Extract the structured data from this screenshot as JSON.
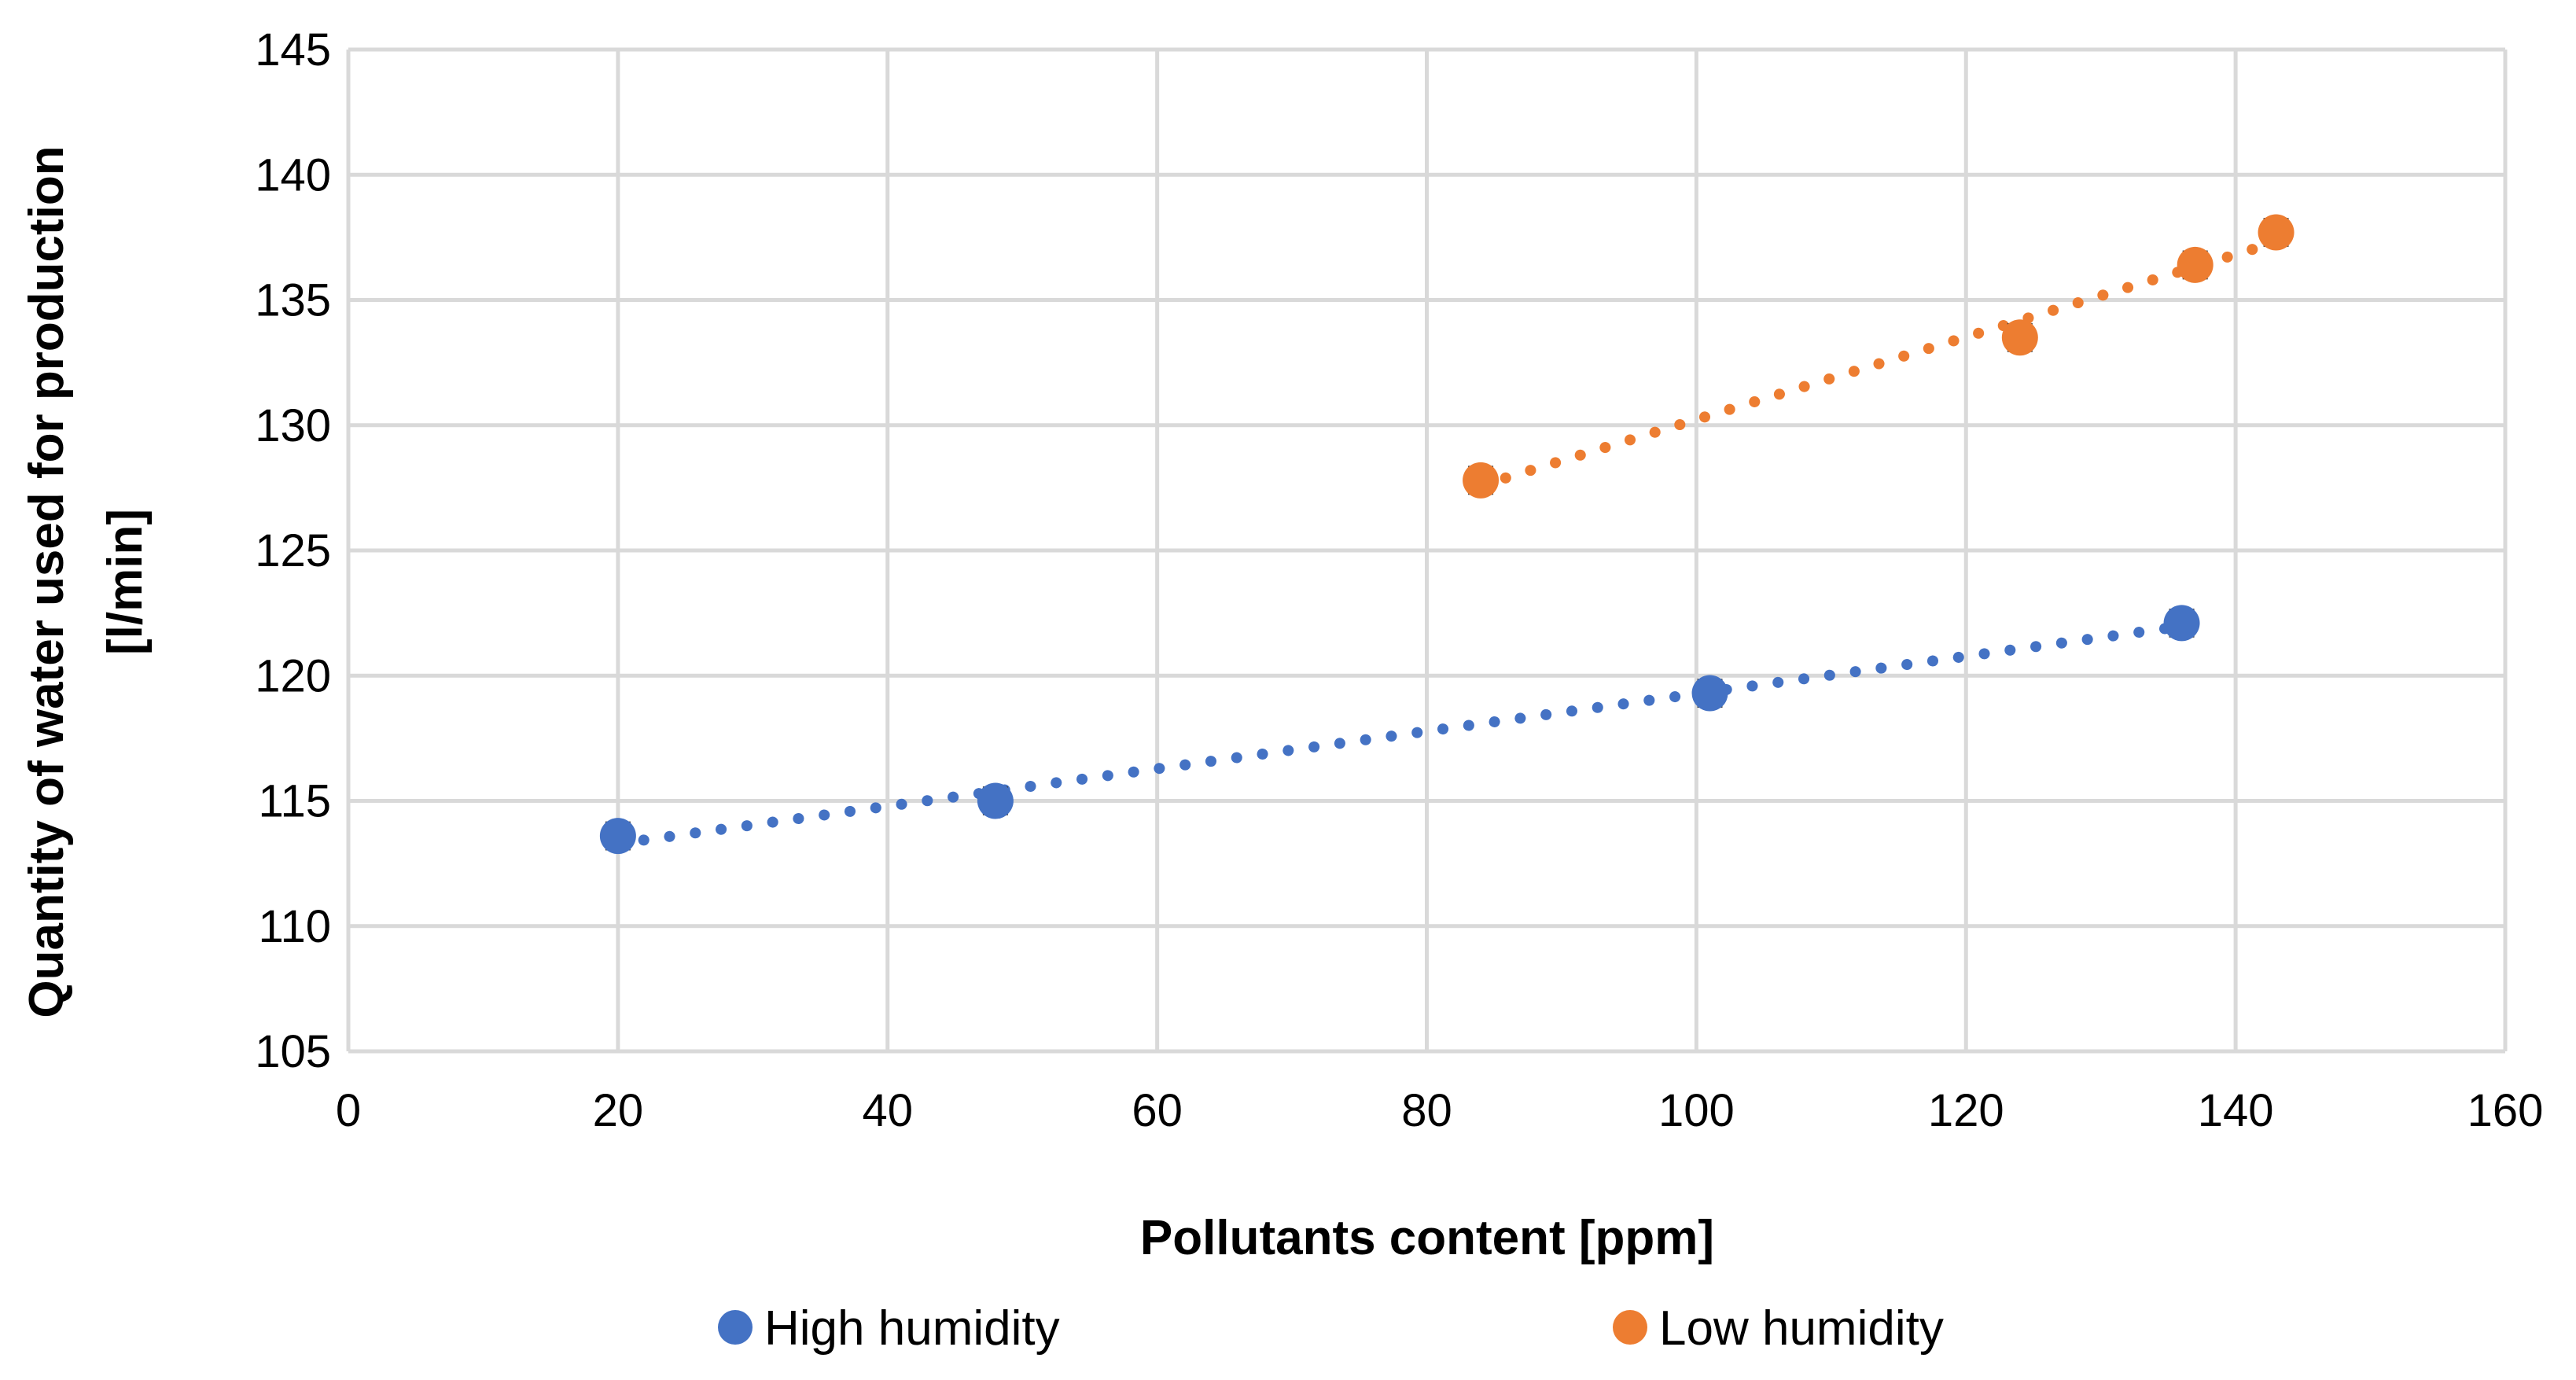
{
  "chart_data": {
    "type": "scatter",
    "title": "",
    "xlabel": "Pollutants content [ppm]",
    "ylabel_lines": [
      "Quantity of water used for production",
      "[l/min]"
    ],
    "xlim": [
      0,
      160
    ],
    "ylim": [
      105,
      145
    ],
    "xticks": [
      0,
      20,
      40,
      60,
      80,
      100,
      120,
      140,
      160
    ],
    "yticks": [
      105,
      110,
      115,
      120,
      125,
      130,
      135,
      140,
      145
    ],
    "grid": true,
    "legend_position": "bottom",
    "series": [
      {
        "name": "High humidity",
        "color": "#4472C4",
        "x": [
          20,
          48,
          101,
          136
        ],
        "y": [
          113.6,
          115.0,
          119.3,
          122.1
        ],
        "error": [
          0.5,
          0.5,
          0.5,
          0.5
        ],
        "trendline": {
          "type": "linear",
          "style": "dotted",
          "x_range": [
            20,
            136
          ]
        }
      },
      {
        "name": "Low humidity",
        "color": "#ED7D31",
        "x": [
          84,
          124,
          137,
          143
        ],
        "y": [
          127.8,
          133.5,
          136.4,
          137.7
        ],
        "error": [
          0.5,
          0.5,
          0.5,
          0.5
        ],
        "trendline": {
          "type": "linear",
          "style": "dotted",
          "x_range": [
            84,
            143
          ]
        }
      }
    ]
  }
}
